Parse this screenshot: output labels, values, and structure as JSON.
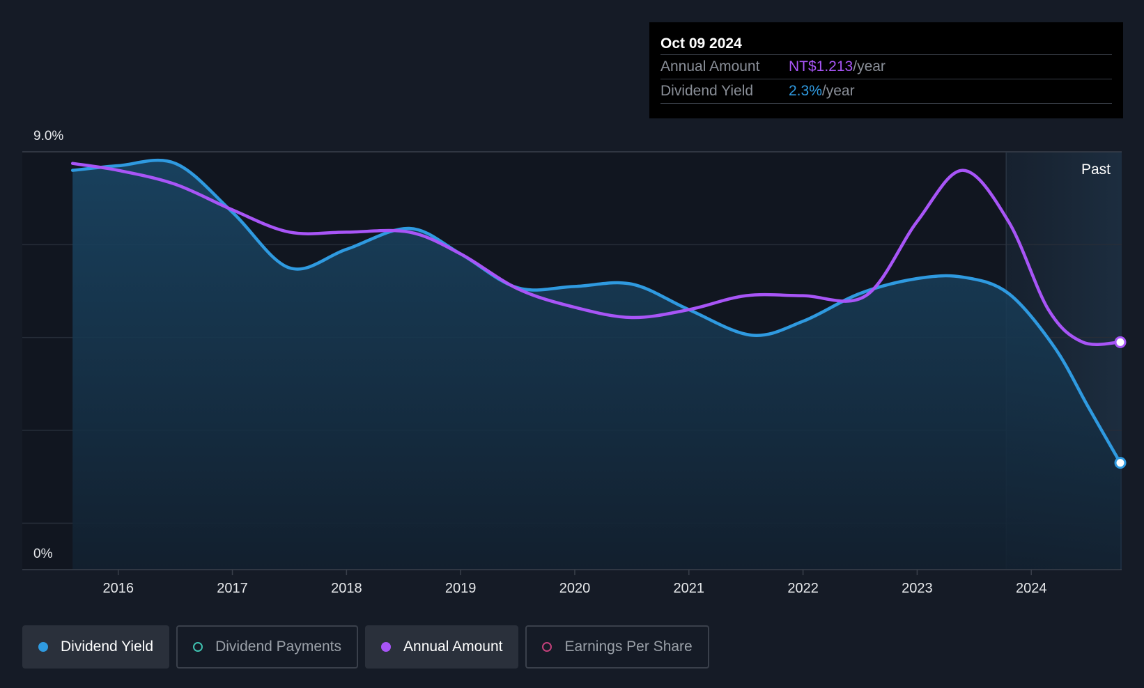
{
  "tooltip": {
    "date": "Oct 09 2024",
    "rows": [
      {
        "label": "Annual Amount",
        "value": "NT$1.213",
        "unit": "/year"
      },
      {
        "label": "Dividend Yield",
        "value": "2.3%",
        "unit": "/year"
      }
    ]
  },
  "past_label": "Past",
  "legend": [
    {
      "label": "Dividend Yield",
      "active": true,
      "color": "#2f9ae0"
    },
    {
      "label": "Dividend Payments",
      "active": false,
      "color": "#3fc1b0"
    },
    {
      "label": "Annual Amount",
      "active": true,
      "color": "#a855f7"
    },
    {
      "label": "Earnings Per Share",
      "active": false,
      "color": "#c2407a"
    }
  ],
  "chart_data": {
    "type": "line",
    "y_axis": {
      "top_label": "9.0%",
      "bottom_label": "0%",
      "ylim": [
        0,
        9.0
      ]
    },
    "x_ticks": [
      "2016",
      "2017",
      "2018",
      "2019",
      "2020",
      "2021",
      "2022",
      "2023",
      "2024"
    ],
    "xlim": [
      2015.55,
      2024.78
    ],
    "past_start": 2023.78,
    "series": [
      {
        "name": "Dividend Yield",
        "color": "#2f9ae0",
        "points": [
          [
            2015.6,
            8.6
          ],
          [
            2016.0,
            8.7
          ],
          [
            2016.5,
            8.75
          ],
          [
            2017.0,
            7.7
          ],
          [
            2017.5,
            6.5
          ],
          [
            2018.0,
            6.9
          ],
          [
            2018.55,
            7.35
          ],
          [
            2019.0,
            6.8
          ],
          [
            2019.5,
            6.07
          ],
          [
            2020.0,
            6.1
          ],
          [
            2020.5,
            6.15
          ],
          [
            2021.0,
            5.6
          ],
          [
            2021.55,
            5.05
          ],
          [
            2022.0,
            5.35
          ],
          [
            2022.5,
            5.95
          ],
          [
            2023.0,
            6.27
          ],
          [
            2023.4,
            6.3
          ],
          [
            2023.8,
            5.95
          ],
          [
            2024.2,
            4.8
          ],
          [
            2024.5,
            3.5
          ],
          [
            2024.78,
            2.3
          ]
        ]
      },
      {
        "name": "Annual Amount",
        "color": "#a855f7",
        "points": [
          [
            2015.6,
            8.75
          ],
          [
            2016.0,
            8.6
          ],
          [
            2016.5,
            8.3
          ],
          [
            2017.0,
            7.75
          ],
          [
            2017.5,
            7.27
          ],
          [
            2018.0,
            7.27
          ],
          [
            2018.55,
            7.27
          ],
          [
            2019.0,
            6.8
          ],
          [
            2019.5,
            6.05
          ],
          [
            2020.0,
            5.65
          ],
          [
            2020.5,
            5.43
          ],
          [
            2021.0,
            5.6
          ],
          [
            2021.5,
            5.9
          ],
          [
            2022.0,
            5.9
          ],
          [
            2022.55,
            5.9
          ],
          [
            2023.0,
            7.5
          ],
          [
            2023.4,
            8.6
          ],
          [
            2023.8,
            7.5
          ],
          [
            2024.15,
            5.6
          ],
          [
            2024.45,
            4.9
          ],
          [
            2024.78,
            4.9
          ]
        ]
      }
    ]
  }
}
